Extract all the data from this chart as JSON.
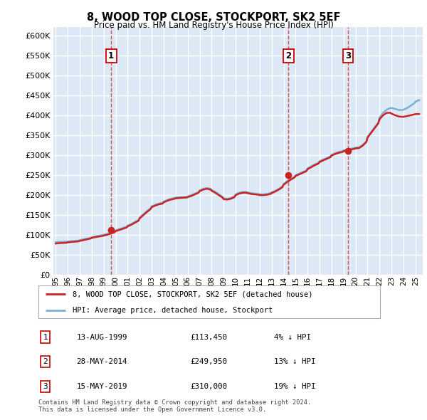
{
  "title": "8, WOOD TOP CLOSE, STOCKPORT, SK2 5EF",
  "subtitle": "Price paid vs. HM Land Registry's House Price Index (HPI)",
  "footer": "Contains HM Land Registry data © Crown copyright and database right 2024.\nThis data is licensed under the Open Government Licence v3.0.",
  "legend_line1": "8, WOOD TOP CLOSE, STOCKPORT, SK2 5EF (detached house)",
  "legend_line2": "HPI: Average price, detached house, Stockport",
  "transactions": [
    {
      "num": 1,
      "date": "13-AUG-1999",
      "price": 113450,
      "price_str": "£113,450",
      "pct": "4%",
      "dir": "↓",
      "year": 1999.62
    },
    {
      "num": 2,
      "date": "28-MAY-2014",
      "price": 249950,
      "price_str": "£249,950",
      "pct": "13%",
      "dir": "↓",
      "year": 2014.4
    },
    {
      "num": 3,
      "date": "15-MAY-2019",
      "price": 310000,
      "price_str": "£310,000",
      "pct": "19%",
      "dir": "↓",
      "year": 2019.37
    }
  ],
  "hpi_color": "#7ab0d4",
  "price_color": "#cc2222",
  "dashed_color": "#dd3333",
  "bg_color": "#dce8f5",
  "grid_color": "#ffffff",
  "ylim": [
    0,
    620000
  ],
  "xlim_start": 1994.8,
  "xlim_end": 2025.6,
  "yticks": [
    0,
    50000,
    100000,
    150000,
    200000,
    250000,
    300000,
    350000,
    400000,
    450000,
    500000,
    550000,
    600000
  ],
  "xticks": [
    1995,
    1996,
    1997,
    1998,
    1999,
    2000,
    2001,
    2002,
    2003,
    2004,
    2005,
    2006,
    2007,
    2008,
    2009,
    2010,
    2011,
    2012,
    2013,
    2014,
    2015,
    2016,
    2017,
    2018,
    2019,
    2020,
    2021,
    2022,
    2023,
    2024,
    2025
  ],
  "hpi_data": [
    [
      1995.0,
      82500
    ],
    [
      1995.3,
      83000
    ],
    [
      1995.6,
      83200
    ],
    [
      1995.9,
      83800
    ],
    [
      1996.0,
      84000
    ],
    [
      1996.3,
      85000
    ],
    [
      1996.6,
      85500
    ],
    [
      1996.9,
      86500
    ],
    [
      1997.0,
      87500
    ],
    [
      1997.3,
      89500
    ],
    [
      1997.6,
      91500
    ],
    [
      1997.9,
      93500
    ],
    [
      1998.0,
      95000
    ],
    [
      1998.3,
      97000
    ],
    [
      1998.6,
      98500
    ],
    [
      1998.9,
      100000
    ],
    [
      1999.0,
      101000
    ],
    [
      1999.3,
      103000
    ],
    [
      1999.6,
      106000
    ],
    [
      1999.9,
      109000
    ],
    [
      2000.0,
      112000
    ],
    [
      2000.3,
      115000
    ],
    [
      2000.6,
      118000
    ],
    [
      2000.9,
      121000
    ],
    [
      2001.0,
      124000
    ],
    [
      2001.3,
      128000
    ],
    [
      2001.6,
      133000
    ],
    [
      2001.9,
      138000
    ],
    [
      2002.0,
      144000
    ],
    [
      2002.3,
      152000
    ],
    [
      2002.6,
      160000
    ],
    [
      2002.9,
      167000
    ],
    [
      2003.0,
      172000
    ],
    [
      2003.3,
      176000
    ],
    [
      2003.6,
      179000
    ],
    [
      2003.9,
      181000
    ],
    [
      2004.0,
      184000
    ],
    [
      2004.3,
      188000
    ],
    [
      2004.6,
      191000
    ],
    [
      2004.9,
      193000
    ],
    [
      2005.0,
      194000
    ],
    [
      2005.3,
      195000
    ],
    [
      2005.6,
      195500
    ],
    [
      2005.9,
      196000
    ],
    [
      2006.0,
      197000
    ],
    [
      2006.3,
      200000
    ],
    [
      2006.6,
      204000
    ],
    [
      2006.9,
      208000
    ],
    [
      2007.0,
      212000
    ],
    [
      2007.3,
      216000
    ],
    [
      2007.6,
      218000
    ],
    [
      2007.9,
      216000
    ],
    [
      2008.0,
      213000
    ],
    [
      2008.3,
      208000
    ],
    [
      2008.6,
      202000
    ],
    [
      2008.9,
      196000
    ],
    [
      2009.0,
      192000
    ],
    [
      2009.3,
      191000
    ],
    [
      2009.6,
      193000
    ],
    [
      2009.9,
      197000
    ],
    [
      2010.0,
      202000
    ],
    [
      2010.3,
      206000
    ],
    [
      2010.6,
      208000
    ],
    [
      2010.9,
      208000
    ],
    [
      2011.0,
      207000
    ],
    [
      2011.3,
      205000
    ],
    [
      2011.6,
      204000
    ],
    [
      2011.9,
      203000
    ],
    [
      2012.0,
      202000
    ],
    [
      2012.3,
      202000
    ],
    [
      2012.6,
      203000
    ],
    [
      2012.9,
      205000
    ],
    [
      2013.0,
      207000
    ],
    [
      2013.3,
      211000
    ],
    [
      2013.6,
      216000
    ],
    [
      2013.9,
      222000
    ],
    [
      2014.0,
      228000
    ],
    [
      2014.3,
      235000
    ],
    [
      2014.6,
      241000
    ],
    [
      2014.9,
      246000
    ],
    [
      2015.0,
      250000
    ],
    [
      2015.3,
      254000
    ],
    [
      2015.6,
      258000
    ],
    [
      2015.9,
      262000
    ],
    [
      2016.0,
      267000
    ],
    [
      2016.3,
      272000
    ],
    [
      2016.6,
      277000
    ],
    [
      2016.9,
      281000
    ],
    [
      2017.0,
      285000
    ],
    [
      2017.3,
      289000
    ],
    [
      2017.6,
      293000
    ],
    [
      2017.9,
      297000
    ],
    [
      2018.0,
      301000
    ],
    [
      2018.3,
      305000
    ],
    [
      2018.6,
      308000
    ],
    [
      2018.9,
      310000
    ],
    [
      2019.0,
      312000
    ],
    [
      2019.3,
      314000
    ],
    [
      2019.6,
      316000
    ],
    [
      2019.9,
      318000
    ],
    [
      2020.0,
      319000
    ],
    [
      2020.3,
      320000
    ],
    [
      2020.6,
      326000
    ],
    [
      2020.9,
      335000
    ],
    [
      2021.0,
      346000
    ],
    [
      2021.3,
      358000
    ],
    [
      2021.6,
      370000
    ],
    [
      2021.9,
      382000
    ],
    [
      2022.0,
      394000
    ],
    [
      2022.3,
      406000
    ],
    [
      2022.6,
      414000
    ],
    [
      2022.9,
      418000
    ],
    [
      2023.0,
      418000
    ],
    [
      2023.3,
      416000
    ],
    [
      2023.6,
      413000
    ],
    [
      2023.9,
      413000
    ],
    [
      2024.0,
      414000
    ],
    [
      2024.3,
      418000
    ],
    [
      2024.6,
      424000
    ],
    [
      2024.9,
      430000
    ],
    [
      2025.0,
      434000
    ],
    [
      2025.3,
      438000
    ]
  ],
  "price_data": [
    [
      1995.0,
      79000
    ],
    [
      1995.3,
      80000
    ],
    [
      1995.6,
      80500
    ],
    [
      1995.9,
      81000
    ],
    [
      1996.0,
      82000
    ],
    [
      1996.3,
      83000
    ],
    [
      1996.6,
      83500
    ],
    [
      1996.9,
      84500
    ],
    [
      1997.0,
      85500
    ],
    [
      1997.3,
      87500
    ],
    [
      1997.6,
      89500
    ],
    [
      1997.9,
      91500
    ],
    [
      1998.0,
      93000
    ],
    [
      1998.3,
      95000
    ],
    [
      1998.6,
      96500
    ],
    [
      1998.9,
      98000
    ],
    [
      1999.0,
      99000
    ],
    [
      1999.3,
      101000
    ],
    [
      1999.6,
      104000
    ],
    [
      1999.9,
      107000
    ],
    [
      2000.0,
      110000
    ],
    [
      2000.3,
      113000
    ],
    [
      2000.6,
      116000
    ],
    [
      2000.9,
      119000
    ],
    [
      2001.0,
      122000
    ],
    [
      2001.3,
      126000
    ],
    [
      2001.6,
      131000
    ],
    [
      2001.9,
      136000
    ],
    [
      2002.0,
      142000
    ],
    [
      2002.3,
      150000
    ],
    [
      2002.6,
      158000
    ],
    [
      2002.9,
      165000
    ],
    [
      2003.0,
      170000
    ],
    [
      2003.3,
      174000
    ],
    [
      2003.6,
      177000
    ],
    [
      2003.9,
      179000
    ],
    [
      2004.0,
      182000
    ],
    [
      2004.3,
      186000
    ],
    [
      2004.6,
      189000
    ],
    [
      2004.9,
      191000
    ],
    [
      2005.0,
      192000
    ],
    [
      2005.3,
      193000
    ],
    [
      2005.6,
      193500
    ],
    [
      2005.9,
      194000
    ],
    [
      2006.0,
      195000
    ],
    [
      2006.3,
      198000
    ],
    [
      2006.6,
      202000
    ],
    [
      2006.9,
      206000
    ],
    [
      2007.0,
      210000
    ],
    [
      2007.3,
      214000
    ],
    [
      2007.6,
      216000
    ],
    [
      2007.9,
      214000
    ],
    [
      2008.0,
      211000
    ],
    [
      2008.3,
      206000
    ],
    [
      2008.6,
      200000
    ],
    [
      2008.9,
      194000
    ],
    [
      2009.0,
      190000
    ],
    [
      2009.3,
      189000
    ],
    [
      2009.6,
      191000
    ],
    [
      2009.9,
      195000
    ],
    [
      2010.0,
      200000
    ],
    [
      2010.3,
      204000
    ],
    [
      2010.6,
      206000
    ],
    [
      2010.9,
      206000
    ],
    [
      2011.0,
      205000
    ],
    [
      2011.3,
      203000
    ],
    [
      2011.6,
      202000
    ],
    [
      2011.9,
      201000
    ],
    [
      2012.0,
      200000
    ],
    [
      2012.3,
      200000
    ],
    [
      2012.6,
      201000
    ],
    [
      2012.9,
      203000
    ],
    [
      2013.0,
      205000
    ],
    [
      2013.3,
      209000
    ],
    [
      2013.6,
      214000
    ],
    [
      2013.9,
      220000
    ],
    [
      2014.0,
      226000
    ],
    [
      2014.3,
      233000
    ],
    [
      2014.6,
      239000
    ],
    [
      2014.9,
      244000
    ],
    [
      2015.0,
      248000
    ],
    [
      2015.3,
      252000
    ],
    [
      2015.6,
      256000
    ],
    [
      2015.9,
      260000
    ],
    [
      2016.0,
      265000
    ],
    [
      2016.3,
      270000
    ],
    [
      2016.6,
      275000
    ],
    [
      2016.9,
      279000
    ],
    [
      2017.0,
      283000
    ],
    [
      2017.3,
      287000
    ],
    [
      2017.6,
      291000
    ],
    [
      2017.9,
      295000
    ],
    [
      2018.0,
      299000
    ],
    [
      2018.3,
      303000
    ],
    [
      2018.6,
      306000
    ],
    [
      2018.9,
      308000
    ],
    [
      2019.0,
      310000
    ],
    [
      2019.3,
      312000
    ],
    [
      2019.6,
      314000
    ],
    [
      2019.9,
      316000
    ],
    [
      2020.0,
      317000
    ],
    [
      2020.3,
      318000
    ],
    [
      2020.6,
      324000
    ],
    [
      2020.9,
      333000
    ],
    [
      2021.0,
      344000
    ],
    [
      2021.3,
      356000
    ],
    [
      2021.6,
      368000
    ],
    [
      2021.9,
      380000
    ],
    [
      2022.0,
      390000
    ],
    [
      2022.3,
      400000
    ],
    [
      2022.6,
      406000
    ],
    [
      2022.9,
      406000
    ],
    [
      2023.0,
      404000
    ],
    [
      2023.3,
      400000
    ],
    [
      2023.6,
      397000
    ],
    [
      2023.9,
      396000
    ],
    [
      2024.0,
      396000
    ],
    [
      2024.3,
      398000
    ],
    [
      2024.6,
      400000
    ],
    [
      2024.9,
      402000
    ],
    [
      2025.0,
      403000
    ],
    [
      2025.3,
      403000
    ]
  ]
}
